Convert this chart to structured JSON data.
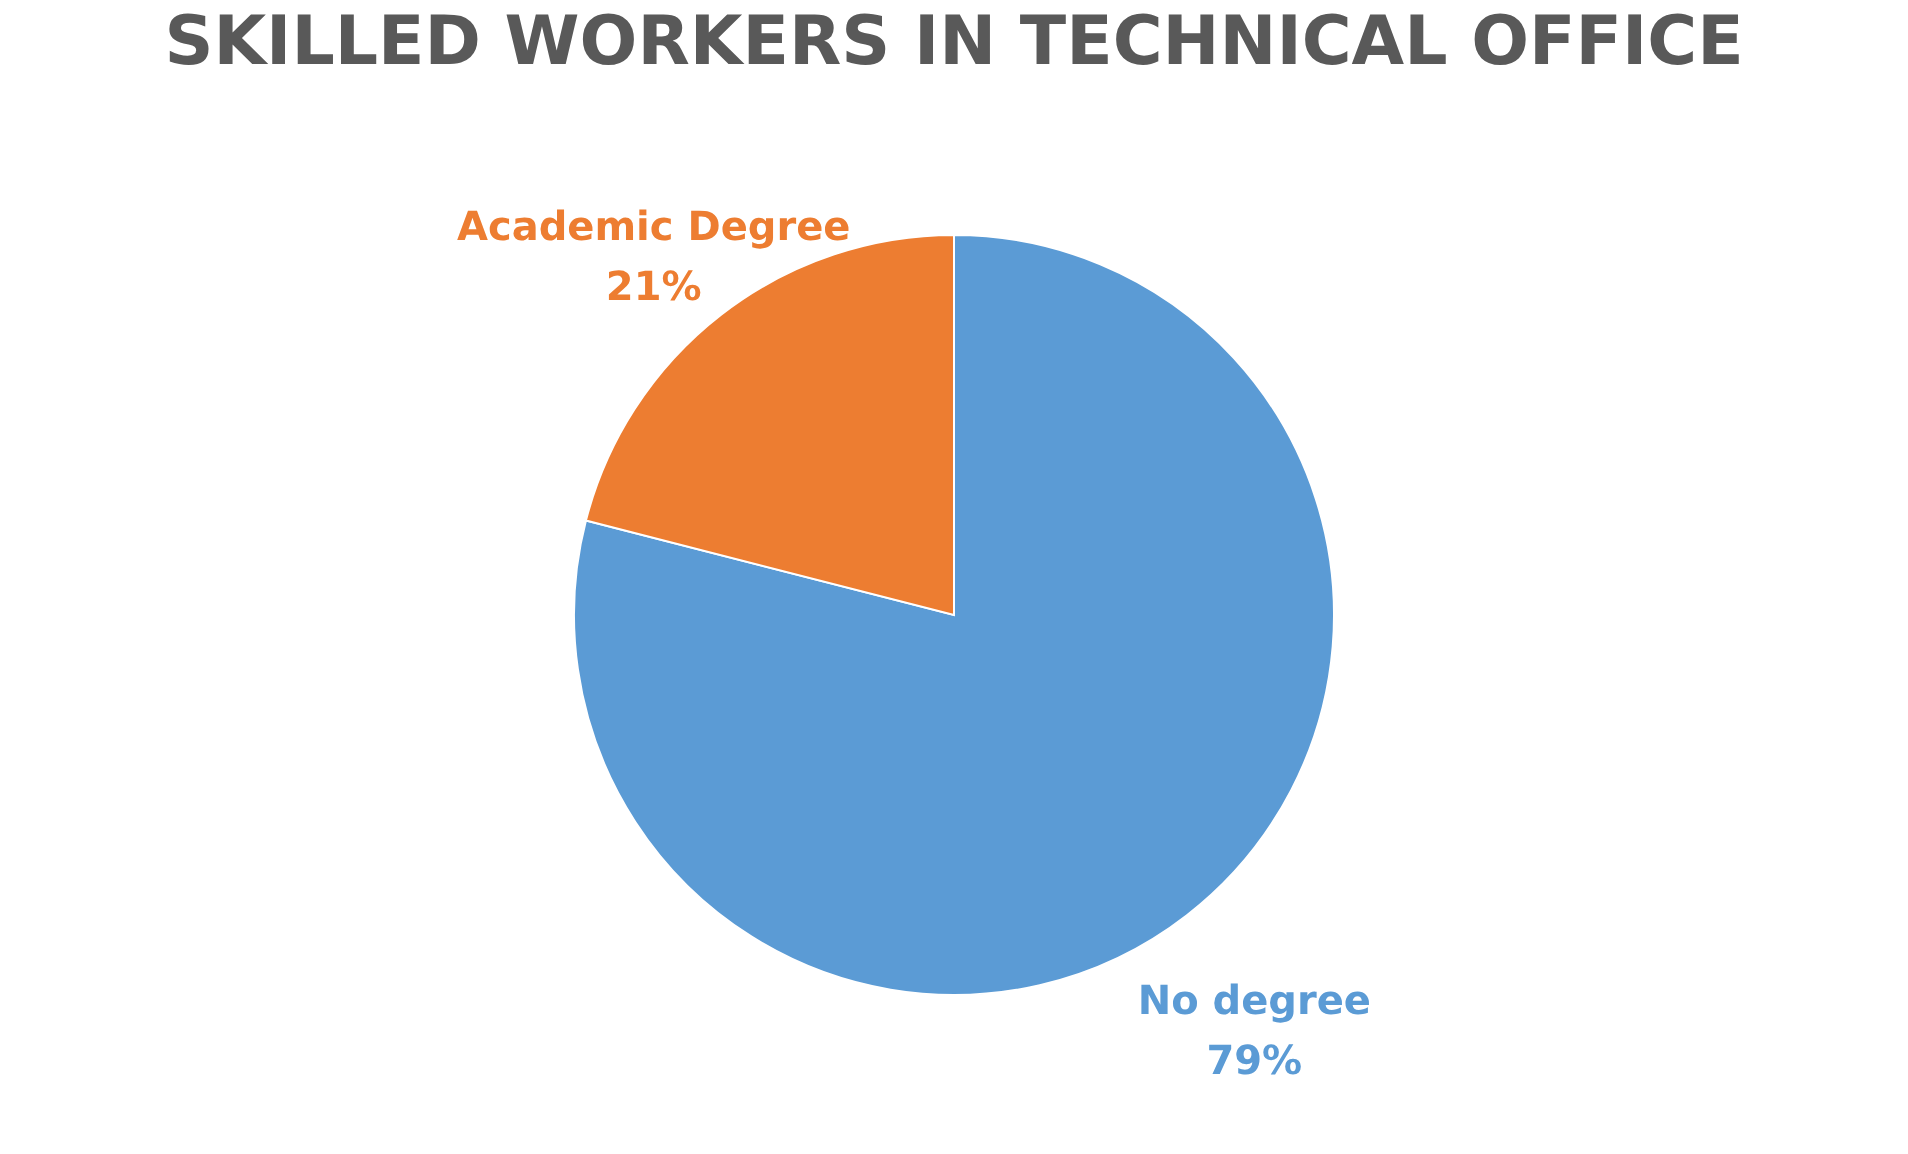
{
  "chart_data": {
    "type": "pie",
    "title": "SKILLED WORKERS IN TECHNICAL OFFICE",
    "categories": [
      "No degree",
      "Academic Degree"
    ],
    "values": [
      79,
      21
    ],
    "colors": [
      "#5b9bd5",
      "#ed7d31"
    ],
    "value_labels": [
      "79%",
      "21%"
    ],
    "legend": false
  }
}
